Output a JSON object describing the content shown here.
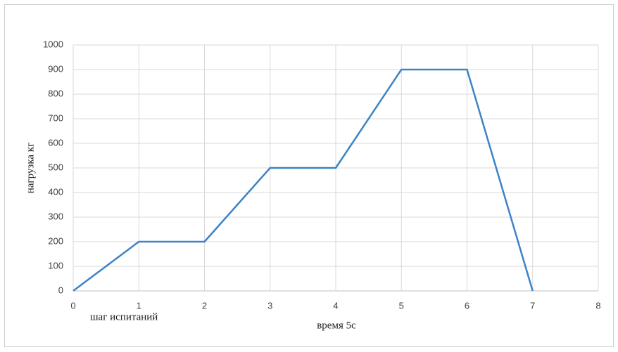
{
  "chart_data": {
    "type": "line",
    "x": [
      0,
      1,
      2,
      3,
      4,
      5,
      6,
      7
    ],
    "series": [
      {
        "name": "нагрузка",
        "color": "#3d83c6",
        "values": [
          0,
          200,
          200,
          500,
          500,
          900,
          900,
          0
        ]
      }
    ],
    "xlim": [
      0,
      8
    ],
    "xticks": [
      0,
      1,
      2,
      3,
      4,
      5,
      6,
      7,
      8
    ],
    "ylim": [
      0,
      1000
    ],
    "yticks": [
      0,
      100,
      200,
      300,
      400,
      500,
      600,
      700,
      800,
      900,
      1000
    ],
    "ylabel": "нагрузка кг",
    "xlabel": "время 5с",
    "annotation": "шаг испитаний",
    "grid": true
  }
}
